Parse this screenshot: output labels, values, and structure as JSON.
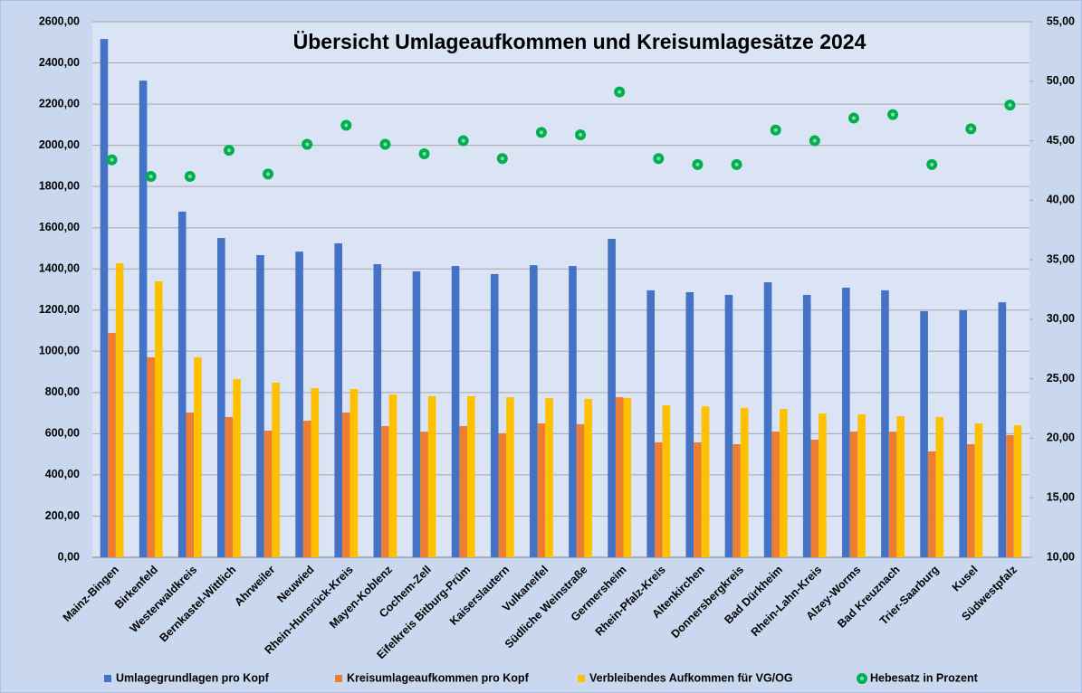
{
  "chart_data": {
    "type": "bar",
    "title": "Übersicht Umlageaufkommen und Kreisumlagesätze 2024",
    "categories": [
      "Mainz-Bingen",
      "Birkenfeld",
      "Westerwaldkreis",
      "Bernkastel-Wittlich",
      "Ahrweiler",
      "Neuwied",
      "Rhein-Hunsrück-Kreis",
      "Mayen-Koblenz",
      "Cochem-Zell",
      "Eifelkreis Bitburg-Prüm",
      "Kaiserslautern",
      "Vulkaneifel",
      "Südliche Weinstraße",
      "Germersheim",
      "Rhein-Pfalz-Kreis",
      "Altenkirchen",
      "Donnersbergkreis",
      "Bad Dürkheim",
      "Rhein-Lahn-Kreis",
      "Alzey-Worms",
      "Bad Kreuznach",
      "Trier-Saarburg",
      "Kusel",
      "Südwestpfalz"
    ],
    "series": [
      {
        "name": "Umlagegrundlagen pro Kopf",
        "color": "#4472c4",
        "values": [
          2516,
          2314,
          1678,
          1550,
          1467,
          1484,
          1524,
          1423,
          1388,
          1414,
          1375,
          1418,
          1414,
          1546,
          1296,
          1287,
          1274,
          1335,
          1274,
          1309,
          1296,
          1195,
          1199,
          1238
        ]
      },
      {
        "name": "Kreisumlageaufkommen pro Kopf",
        "color": "#ed7d31",
        "values": [
          1089,
          971,
          703,
          681,
          615,
          663,
          703,
          637,
          610,
          637,
          602,
          650,
          646,
          777,
          558,
          558,
          549,
          610,
          571,
          610,
          610,
          514,
          549,
          593
        ]
      },
      {
        "name": "Verbleibendes Aufkommen für VG/OG",
        "color": "#ffc000",
        "values": [
          1427,
          1340,
          971,
          865,
          848,
          821,
          817,
          790,
          782,
          782,
          777,
          773,
          769,
          773,
          738,
          733,
          725,
          720,
          698,
          694,
          685,
          681,
          650,
          641
        ]
      },
      {
        "name": "Hebesatz in Prozent",
        "color": "#00b050",
        "type": "scatter",
        "axis": "y2",
        "values": [
          43.4,
          42.0,
          42.0,
          44.2,
          42.2,
          44.7,
          46.3,
          44.7,
          43.9,
          45.0,
          43.5,
          45.7,
          45.5,
          49.1,
          43.5,
          43.0,
          43.0,
          45.9,
          45.0,
          46.9,
          47.2,
          43.0,
          46.0,
          48.0
        ]
      }
    ],
    "ylim": [
      0,
      2600
    ],
    "yticks": [
      {
        "value": 0,
        "label": "0,00"
      },
      {
        "value": 200,
        "label": "200,00"
      },
      {
        "value": 400,
        "label": "400,00"
      },
      {
        "value": 600,
        "label": "600,00"
      },
      {
        "value": 800,
        "label": "800,00"
      },
      {
        "value": 1000,
        "label": "1000,00"
      },
      {
        "value": 1200,
        "label": "1200,00"
      },
      {
        "value": 1400,
        "label": "1400,00"
      },
      {
        "value": 1600,
        "label": "1600,00"
      },
      {
        "value": 1800,
        "label": "1800,00"
      },
      {
        "value": 2000,
        "label": "2000,00"
      },
      {
        "value": 2200,
        "label": "2200,00"
      },
      {
        "value": 2400,
        "label": "2400,00"
      },
      {
        "value": 2600,
        "label": "2600,00"
      }
    ],
    "y2lim": [
      10,
      55
    ],
    "y2ticks": [
      {
        "value": 10,
        "label": "10,00"
      },
      {
        "value": 15,
        "label": "15,00"
      },
      {
        "value": 20,
        "label": "20,00"
      },
      {
        "value": 25,
        "label": "25,00"
      },
      {
        "value": 30,
        "label": "30,00"
      },
      {
        "value": 35,
        "label": "35,00"
      },
      {
        "value": 40,
        "label": "40,00"
      },
      {
        "value": 45,
        "label": "45,00"
      },
      {
        "value": 50,
        "label": "50,00"
      },
      {
        "value": 55,
        "label": "55,00"
      }
    ],
    "grid": true,
    "legend": "bottom"
  }
}
